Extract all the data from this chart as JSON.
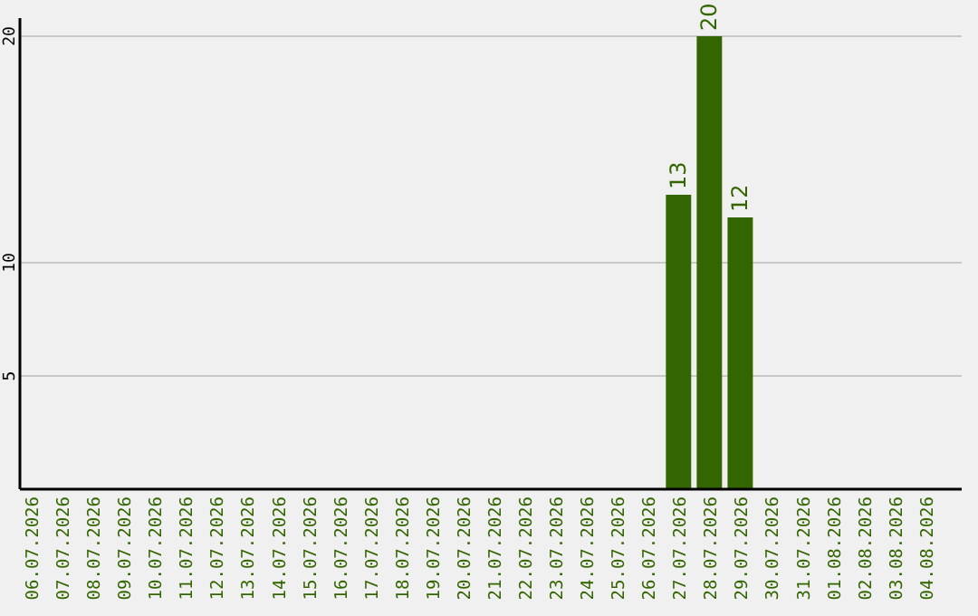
{
  "chart_data": {
    "type": "bar",
    "categories": [
      "06.07.2026",
      "07.07.2026",
      "08.07.2026",
      "09.07.2026",
      "10.07.2026",
      "11.07.2026",
      "12.07.2026",
      "13.07.2026",
      "14.07.2026",
      "15.07.2026",
      "16.07.2026",
      "17.07.2026",
      "18.07.2026",
      "19.07.2026",
      "20.07.2026",
      "21.07.2026",
      "22.07.2026",
      "23.07.2026",
      "24.07.2026",
      "25.07.2026",
      "26.07.2026",
      "27.07.2026",
      "28.07.2026",
      "29.07.2026",
      "30.07.2026",
      "31.07.2026",
      "01.08.2026",
      "02.08.2026",
      "03.08.2026",
      "04.08.2026"
    ],
    "values": [
      null,
      null,
      null,
      null,
      null,
      null,
      null,
      null,
      null,
      null,
      null,
      null,
      null,
      null,
      null,
      null,
      null,
      null,
      null,
      null,
      null,
      13,
      20,
      12,
      null,
      null,
      null,
      null,
      null,
      null
    ],
    "color": "#336600",
    "ylim": [
      0,
      20.8
    ],
    "yticks": [
      5,
      10,
      20
    ],
    "grid": "y",
    "data_labels": true
  }
}
